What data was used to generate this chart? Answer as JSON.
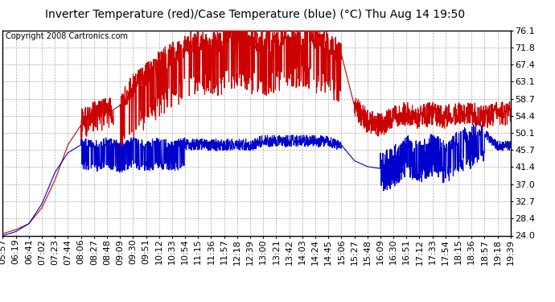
{
  "title": "Inverter Temperature (red)/Case Temperature (blue) (°C) Thu Aug 14 19:50",
  "copyright": "Copyright 2008 Cartronics.com",
  "yticks": [
    24.0,
    28.4,
    32.7,
    37.0,
    41.4,
    45.7,
    50.1,
    54.4,
    58.7,
    63.1,
    67.4,
    71.8,
    76.1
  ],
  "ylim": [
    24.0,
    76.1
  ],
  "xtick_labels": [
    "05:57",
    "06:19",
    "06:41",
    "07:02",
    "07:23",
    "07:44",
    "08:06",
    "08:27",
    "08:48",
    "09:09",
    "09:30",
    "09:51",
    "10:12",
    "10:33",
    "10:54",
    "11:15",
    "11:36",
    "11:57",
    "12:18",
    "12:39",
    "13:00",
    "13:21",
    "13:42",
    "14:03",
    "14:24",
    "14:45",
    "15:06",
    "15:27",
    "15:48",
    "16:09",
    "16:30",
    "16:51",
    "17:12",
    "17:33",
    "17:54",
    "18:15",
    "18:36",
    "18:57",
    "19:18",
    "19:39"
  ],
  "red_color": "#cc0000",
  "blue_color": "#0000cc",
  "bg_color": "#ffffff",
  "grid_color": "#999999",
  "title_fontsize": 10,
  "copyright_fontsize": 7,
  "tick_fontsize": 8,
  "ylabel_fontsize": 8
}
